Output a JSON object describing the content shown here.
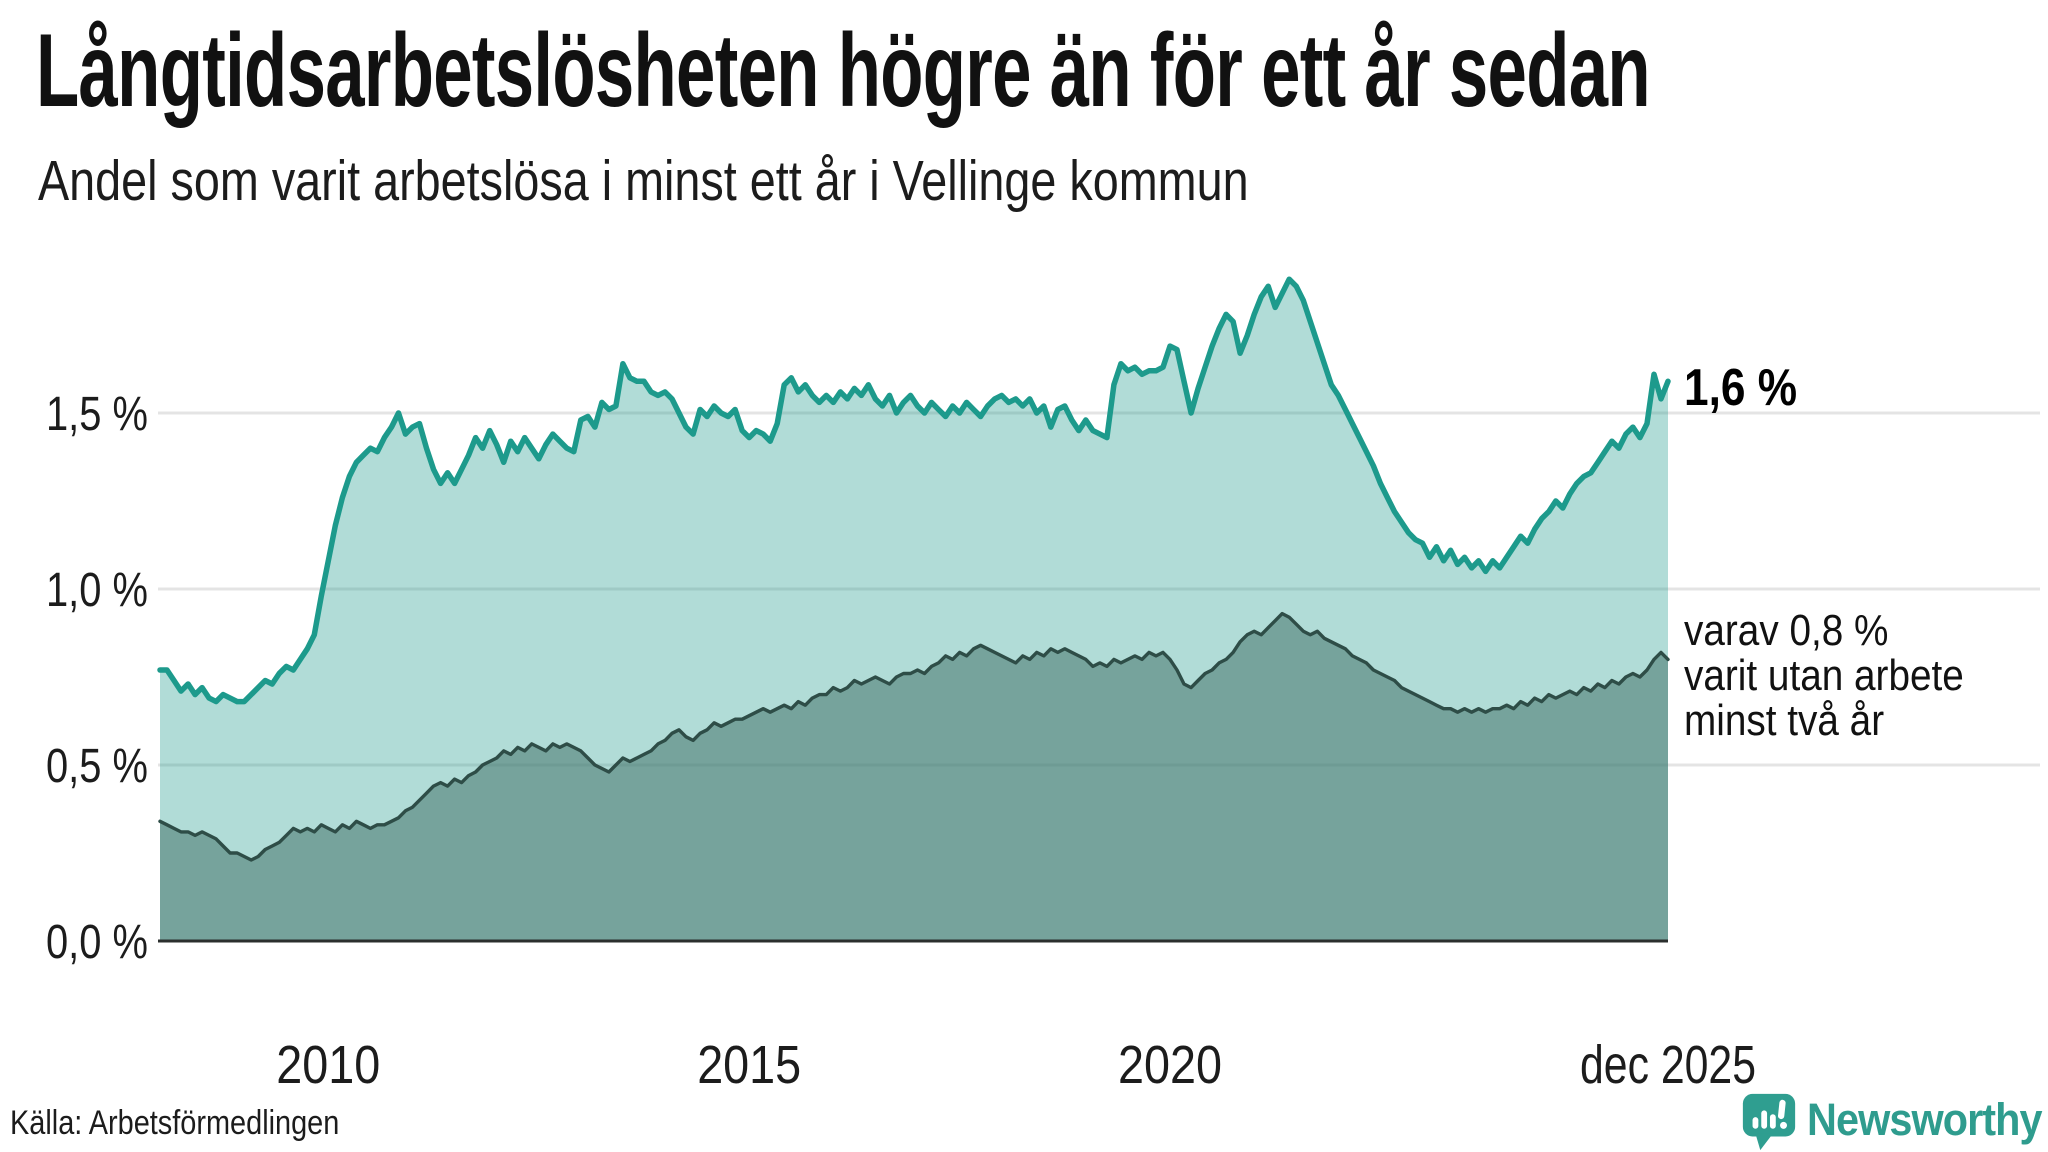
{
  "header": {
    "title": "Långtidsarbetslösheten högre än för ett år sedan",
    "subtitle": "Andel som varit arbetslösa i minst ett år i Vellinge kommun"
  },
  "footer": {
    "source": "Källa: Arbetsförmedlingen",
    "logo_text": "Newsworthy"
  },
  "colors": {
    "line_total": "#1d9a8c",
    "line_two_years": "#2e4d47",
    "fill_total": "rgba(31,154,139,0.35)",
    "fill_two_years": "rgba(70,116,108,0.55)",
    "gridline": "#e4e4e4",
    "axis": "#2b2f2e",
    "logo_teal": "#2f9e90",
    "text": "#1c1c1c"
  },
  "chart_data": {
    "type": "area",
    "title": "Långtidsarbetslösheten högre än för ett år sedan",
    "subtitle": "Andel som varit arbetslösa i minst ett år i Vellinge kommun",
    "unit": "%",
    "frequency": "monthly",
    "x_start": "2008-01",
    "x_end": "2025-12",
    "ylim": [
      0,
      2.0
    ],
    "grid": true,
    "y_gridlines": [
      0.5,
      1.0,
      1.5
    ],
    "y_ticks": [
      {
        "label": "1,5 %",
        "value": 1.5
      },
      {
        "label": "1,0 %",
        "value": 1.0
      },
      {
        "label": "0,5 %",
        "value": 0.5
      },
      {
        "label": "0,0 %",
        "value": 0.0
      }
    ],
    "x_ticks": [
      {
        "label": "2010",
        "month_index": 24
      },
      {
        "label": "2015",
        "month_index": 84
      },
      {
        "label": "2020",
        "month_index": 144
      },
      {
        "label": "dec 2025",
        "month_index": 215
      }
    ],
    "series": [
      {
        "name": "Andel arbetslösa minst ett år",
        "color": "#1d9a8c",
        "fill": "rgba(31,154,139,0.35)",
        "stroke_width": 5.5,
        "values": [
          0.77,
          0.77,
          0.74,
          0.71,
          0.73,
          0.7,
          0.72,
          0.69,
          0.68,
          0.7,
          0.69,
          0.68,
          0.68,
          0.7,
          0.72,
          0.74,
          0.73,
          0.76,
          0.78,
          0.77,
          0.8,
          0.83,
          0.87,
          0.98,
          1.08,
          1.18,
          1.26,
          1.32,
          1.36,
          1.38,
          1.4,
          1.39,
          1.43,
          1.46,
          1.5,
          1.44,
          1.46,
          1.47,
          1.4,
          1.34,
          1.3,
          1.33,
          1.3,
          1.34,
          1.38,
          1.43,
          1.4,
          1.45,
          1.41,
          1.36,
          1.42,
          1.39,
          1.43,
          1.4,
          1.37,
          1.41,
          1.44,
          1.42,
          1.4,
          1.39,
          1.48,
          1.49,
          1.46,
          1.53,
          1.51,
          1.52,
          1.64,
          1.6,
          1.59,
          1.59,
          1.56,
          1.55,
          1.56,
          1.54,
          1.5,
          1.46,
          1.44,
          1.51,
          1.49,
          1.52,
          1.5,
          1.49,
          1.51,
          1.45,
          1.43,
          1.45,
          1.44,
          1.42,
          1.47,
          1.58,
          1.6,
          1.56,
          1.58,
          1.55,
          1.53,
          1.55,
          1.53,
          1.56,
          1.54,
          1.57,
          1.55,
          1.58,
          1.54,
          1.52,
          1.55,
          1.5,
          1.53,
          1.55,
          1.52,
          1.5,
          1.53,
          1.51,
          1.49,
          1.52,
          1.5,
          1.53,
          1.51,
          1.49,
          1.52,
          1.54,
          1.55,
          1.53,
          1.54,
          1.52,
          1.54,
          1.5,
          1.52,
          1.46,
          1.51,
          1.52,
          1.48,
          1.45,
          1.48,
          1.45,
          1.44,
          1.43,
          1.58,
          1.64,
          1.62,
          1.63,
          1.61,
          1.62,
          1.62,
          1.63,
          1.69,
          1.68,
          1.59,
          1.5,
          1.57,
          1.63,
          1.69,
          1.74,
          1.78,
          1.76,
          1.67,
          1.72,
          1.78,
          1.83,
          1.86,
          1.8,
          1.84,
          1.88,
          1.86,
          1.82,
          1.76,
          1.7,
          1.64,
          1.58,
          1.55,
          1.51,
          1.47,
          1.43,
          1.39,
          1.35,
          1.3,
          1.26,
          1.22,
          1.19,
          1.16,
          1.14,
          1.13,
          1.09,
          1.12,
          1.08,
          1.11,
          1.07,
          1.09,
          1.06,
          1.08,
          1.05,
          1.08,
          1.06,
          1.09,
          1.12,
          1.15,
          1.13,
          1.17,
          1.2,
          1.22,
          1.25,
          1.23,
          1.27,
          1.3,
          1.32,
          1.33,
          1.36,
          1.39,
          1.42,
          1.4,
          1.44,
          1.46,
          1.43,
          1.47,
          1.61,
          1.54,
          1.59
        ]
      },
      {
        "name": "Varav arbetslösa minst två år",
        "color": "#2e4d47",
        "fill": "rgba(70,116,108,0.55)",
        "stroke_width": 3.4,
        "values": [
          0.34,
          0.33,
          0.32,
          0.31,
          0.31,
          0.3,
          0.31,
          0.3,
          0.29,
          0.27,
          0.25,
          0.25,
          0.24,
          0.23,
          0.24,
          0.26,
          0.27,
          0.28,
          0.3,
          0.32,
          0.31,
          0.32,
          0.31,
          0.33,
          0.32,
          0.31,
          0.33,
          0.32,
          0.34,
          0.33,
          0.32,
          0.33,
          0.33,
          0.34,
          0.35,
          0.37,
          0.38,
          0.4,
          0.42,
          0.44,
          0.45,
          0.44,
          0.46,
          0.45,
          0.47,
          0.48,
          0.5,
          0.51,
          0.52,
          0.54,
          0.53,
          0.55,
          0.54,
          0.56,
          0.55,
          0.54,
          0.56,
          0.55,
          0.56,
          0.55,
          0.54,
          0.52,
          0.5,
          0.49,
          0.48,
          0.5,
          0.52,
          0.51,
          0.52,
          0.53,
          0.54,
          0.56,
          0.57,
          0.59,
          0.6,
          0.58,
          0.57,
          0.59,
          0.6,
          0.62,
          0.61,
          0.62,
          0.63,
          0.63,
          0.64,
          0.65,
          0.66,
          0.65,
          0.66,
          0.67,
          0.66,
          0.68,
          0.67,
          0.69,
          0.7,
          0.7,
          0.72,
          0.71,
          0.72,
          0.74,
          0.73,
          0.74,
          0.75,
          0.74,
          0.73,
          0.75,
          0.76,
          0.76,
          0.77,
          0.76,
          0.78,
          0.79,
          0.81,
          0.8,
          0.82,
          0.81,
          0.83,
          0.84,
          0.83,
          0.82,
          0.81,
          0.8,
          0.79,
          0.81,
          0.8,
          0.82,
          0.81,
          0.83,
          0.82,
          0.83,
          0.82,
          0.81,
          0.8,
          0.78,
          0.79,
          0.78,
          0.8,
          0.79,
          0.8,
          0.81,
          0.8,
          0.82,
          0.81,
          0.82,
          0.8,
          0.77,
          0.73,
          0.72,
          0.74,
          0.76,
          0.77,
          0.79,
          0.8,
          0.82,
          0.85,
          0.87,
          0.88,
          0.87,
          0.89,
          0.91,
          0.93,
          0.92,
          0.9,
          0.88,
          0.87,
          0.88,
          0.86,
          0.85,
          0.84,
          0.83,
          0.81,
          0.8,
          0.79,
          0.77,
          0.76,
          0.75,
          0.74,
          0.72,
          0.71,
          0.7,
          0.69,
          0.68,
          0.67,
          0.66,
          0.66,
          0.65,
          0.66,
          0.65,
          0.66,
          0.65,
          0.66,
          0.66,
          0.67,
          0.66,
          0.68,
          0.67,
          0.69,
          0.68,
          0.7,
          0.69,
          0.7,
          0.71,
          0.7,
          0.72,
          0.71,
          0.73,
          0.72,
          0.74,
          0.73,
          0.75,
          0.76,
          0.75,
          0.77,
          0.8,
          0.82,
          0.8
        ]
      }
    ],
    "annotations": {
      "latest_total": "1,6 %",
      "sub_lines": [
        "varav 0,8 %",
        "varit utan arbete",
        "minst två år"
      ]
    }
  }
}
